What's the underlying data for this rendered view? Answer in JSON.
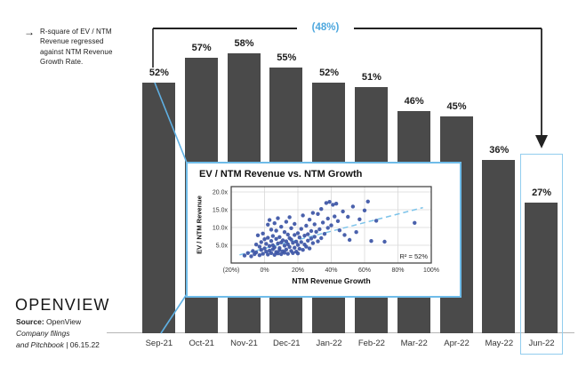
{
  "annotation": {
    "arrow": "→",
    "text": "R-square of EV / NTM Revenue regressed against NTM Revenue Growth Rate."
  },
  "logo": {
    "text": "OPENVIEW"
  },
  "source": {
    "label": "Source:",
    "name": " OpenView",
    "filings": "Company filings",
    "pitchbook": "and Pitchbook",
    "date": " | 06.15.22"
  },
  "colors": {
    "bar": "#4a4a4a",
    "accent_blue_text": "#4da7de",
    "callout_line_blue": "#5fb0e3",
    "inset_border_blue": "#6fbce9",
    "highlight_box_blue": "#92cdee",
    "scatter_dot_blue": "#3b54a5",
    "trendline_blue": "#7cc3ea",
    "axis_gray": "#b5b5b5"
  },
  "chart_data": [
    {
      "type": "bar",
      "title": "",
      "categories": [
        "Sep-21",
        "Oct-21",
        "Nov-21",
        "Dec-21",
        "Jan-22",
        "Feb-22",
        "Mar-22",
        "Apr-22",
        "May-22",
        "Jun-22"
      ],
      "values": [
        52,
        57,
        58,
        55,
        52,
        51,
        46,
        45,
        36,
        27
      ],
      "unit": "%",
      "annotation": "(48%)",
      "highlight_category": "Jun-22",
      "ylim": [
        0,
        60
      ],
      "grid": false,
      "bar_color": "#4a4a4a"
    },
    {
      "type": "scatter",
      "title": "EV / NTM Revenue vs. NTM Growth",
      "xlabel": "NTM Revenue Growth",
      "ylabel": "EV / NTM Revenue",
      "xlim": [
        -20,
        100
      ],
      "ylim": [
        0,
        21.5
      ],
      "xticks": [
        "(20%)",
        "0%",
        "20%",
        "40%",
        "60%",
        "80%",
        "100%"
      ],
      "xtick_values": [
        -20,
        0,
        20,
        40,
        60,
        80,
        100
      ],
      "yticks": [
        "5.0x",
        "10.0x",
        "15.0x",
        "20.0x"
      ],
      "ytick_values": [
        5,
        10,
        15,
        20
      ],
      "grid": true,
      "r2_label": "R² = 52%",
      "trendline": {
        "x1": -15,
        "y1": 2.3,
        "x2": 95,
        "y2": 15.6,
        "style": "dashed"
      },
      "points": [
        [
          -12,
          2.1
        ],
        [
          -10,
          2.8
        ],
        [
          -8,
          1.9
        ],
        [
          -7,
          3.4
        ],
        [
          -6,
          2.5
        ],
        [
          -5,
          5.2
        ],
        [
          -5,
          3.0
        ],
        [
          -4,
          7.8
        ],
        [
          -3,
          4.6
        ],
        [
          -3,
          2.2
        ],
        [
          -2,
          5.9
        ],
        [
          -2,
          3.7
        ],
        [
          -1,
          2.6
        ],
        [
          -1,
          8.3
        ],
        [
          0,
          4.1
        ],
        [
          0,
          6.7
        ],
        [
          1,
          3.2
        ],
        [
          1,
          5.4
        ],
        [
          2,
          2.4
        ],
        [
          2,
          7.1
        ],
        [
          2,
          10.8
        ],
        [
          3,
          4.8
        ],
        [
          3,
          3.5
        ],
        [
          3,
          12.1
        ],
        [
          4,
          6.2
        ],
        [
          4,
          2.8
        ],
        [
          4,
          9.4
        ],
        [
          5,
          5.0
        ],
        [
          5,
          3.9
        ],
        [
          5,
          7.6
        ],
        [
          6,
          4.4
        ],
        [
          6,
          11.2
        ],
        [
          6,
          2.3
        ],
        [
          7,
          6.8
        ],
        [
          7,
          3.1
        ],
        [
          7,
          9.1
        ],
        [
          8,
          5.5
        ],
        [
          8,
          2.7
        ],
        [
          8,
          12.6
        ],
        [
          9,
          4.2
        ],
        [
          9,
          7.3
        ],
        [
          9,
          3.6
        ],
        [
          10,
          5.8
        ],
        [
          10,
          10.2
        ],
        [
          10,
          2.5
        ],
        [
          11,
          6.4
        ],
        [
          11,
          3.3
        ],
        [
          12,
          8.7
        ],
        [
          12,
          4.9
        ],
        [
          12,
          2.9
        ],
        [
          13,
          6.1
        ],
        [
          13,
          11.6
        ],
        [
          13,
          3.8
        ],
        [
          14,
          5.3
        ],
        [
          14,
          8.0
        ],
        [
          14,
          2.6
        ],
        [
          15,
          7.0
        ],
        [
          15,
          4.5
        ],
        [
          15,
          12.9
        ],
        [
          16,
          6.6
        ],
        [
          16,
          3.4
        ],
        [
          16,
          9.8
        ],
        [
          17,
          5.7
        ],
        [
          17,
          2.8
        ],
        [
          18,
          7.9
        ],
        [
          18,
          4.3
        ],
        [
          18,
          11.0
        ],
        [
          19,
          6.0
        ],
        [
          19,
          3.2
        ],
        [
          20,
          8.4
        ],
        [
          20,
          5.1
        ],
        [
          20,
          2.7
        ],
        [
          21,
          7.2
        ],
        [
          21,
          4.0
        ],
        [
          22,
          9.6
        ],
        [
          22,
          5.9
        ],
        [
          23,
          13.4
        ],
        [
          23,
          3.7
        ],
        [
          24,
          7.7
        ],
        [
          24,
          5.2
        ],
        [
          25,
          10.5
        ],
        [
          25,
          4.6
        ],
        [
          26,
          8.1
        ],
        [
          26,
          6.3
        ],
        [
          27,
          12.2
        ],
        [
          27,
          4.1
        ],
        [
          28,
          9.0
        ],
        [
          28,
          6.9
        ],
        [
          29,
          14.1
        ],
        [
          29,
          5.6
        ],
        [
          30,
          10.9
        ],
        [
          30,
          7.4
        ],
        [
          31,
          8.8
        ],
        [
          32,
          6.1
        ],
        [
          32,
          13.8
        ],
        [
          33,
          9.5
        ],
        [
          34,
          7.0
        ],
        [
          34,
          15.2
        ],
        [
          35,
          11.4
        ],
        [
          36,
          8.2
        ],
        [
          37,
          16.9
        ],
        [
          38,
          12.5
        ],
        [
          38,
          9.9
        ],
        [
          39,
          17.2
        ],
        [
          40,
          10.6
        ],
        [
          41,
          16.4
        ],
        [
          42,
          13.1
        ],
        [
          43,
          16.7
        ],
        [
          44,
          11.8
        ],
        [
          45,
          9.2
        ],
        [
          47,
          14.5
        ],
        [
          48,
          7.9
        ],
        [
          50,
          13.0
        ],
        [
          51,
          6.5
        ],
        [
          53,
          15.9
        ],
        [
          55,
          8.7
        ],
        [
          57,
          12.3
        ],
        [
          60,
          14.8
        ],
        [
          62,
          17.3
        ],
        [
          64,
          6.2
        ],
        [
          67,
          11.9
        ],
        [
          72,
          6.0
        ],
        [
          90,
          11.3
        ]
      ]
    }
  ]
}
